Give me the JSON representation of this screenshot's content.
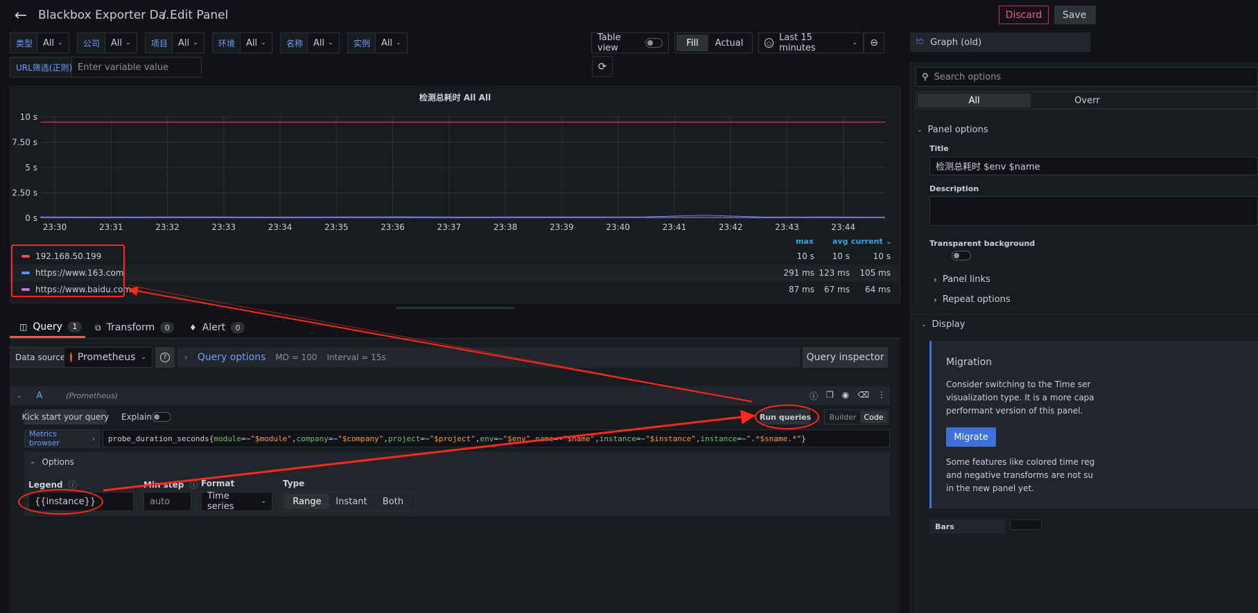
{
  "header": {
    "dashboard_title": "Blackbox Exporter Da...",
    "separator_title": "/ Edit Panel",
    "discard_label": "Discard",
    "save_label": "Save"
  },
  "variables": [
    {
      "label": "类型",
      "value": "All"
    },
    {
      "label": "公司",
      "value": "All"
    },
    {
      "label": "项目",
      "value": "All"
    },
    {
      "label": "环境",
      "value": "All"
    },
    {
      "label": "名称",
      "value": "All"
    },
    {
      "label": "实例",
      "value": "All"
    }
  ],
  "url_filter": {
    "label": "URL筛选(正则)",
    "placeholder": "Enter variable value"
  },
  "view_controls": {
    "table_view_label": "Table view",
    "fill_label": "Fill",
    "actual_label": "Actual",
    "time_range_label": "Last 15 minutes"
  },
  "chart_data": {
    "type": "line",
    "title": "检测总耗时 All All",
    "ylim": [
      0,
      10
    ],
    "y_ticks": [
      "0 s",
      "2.50 s",
      "5 s",
      "7.50 s",
      "10 s"
    ],
    "x": [
      "23:30",
      "23:31",
      "23:32",
      "23:33",
      "23:34",
      "23:35",
      "23:36",
      "23:37",
      "23:38",
      "23:39",
      "23:40",
      "23:41",
      "23:42",
      "23:43",
      "23:44"
    ],
    "series": [
      {
        "name": "192.168.50.199",
        "color": "#f2495c",
        "values": [
          10,
          10,
          10,
          10,
          10,
          10,
          10,
          10,
          10,
          10,
          10,
          10,
          10,
          10,
          10
        ],
        "max": "10 s",
        "avg": "10 s",
        "current": "10 s"
      },
      {
        "name": "https://www.163.com",
        "color": "#5794f2",
        "values": [
          0.12,
          0.11,
          0.12,
          0.12,
          0.11,
          0.12,
          0.13,
          0.11,
          0.12,
          0.12,
          0.12,
          0.29,
          0.11,
          0.12,
          0.105
        ],
        "max": "291 ms",
        "avg": "123 ms",
        "current": "105 ms"
      },
      {
        "name": "https://www.baidu.com",
        "color": "#b877d9",
        "values": [
          0.07,
          0.06,
          0.07,
          0.07,
          0.06,
          0.07,
          0.07,
          0.06,
          0.07,
          0.07,
          0.08,
          0.087,
          0.06,
          0.07,
          0.064
        ],
        "max": "87 ms",
        "avg": "67 ms",
        "current": "64 ms"
      }
    ],
    "legend_headers": {
      "max": "max",
      "avg": "avg",
      "current": "current"
    }
  },
  "tabs": [
    {
      "label": "Query",
      "count": "1"
    },
    {
      "label": "Transform",
      "count": "0"
    },
    {
      "label": "Alert",
      "count": "0"
    }
  ],
  "query_bar": {
    "data_source_label": "Data source",
    "datasource": "Prometheus",
    "query_options_label": "Query options",
    "md_info": "MD = 100",
    "interval_info": "Interval = 15s",
    "inspector_label": "Query inspector"
  },
  "query_row": {
    "ref_id": "A",
    "ds_name": "(Prometheus)",
    "kick_start": "Kick start your query",
    "explain_label": "Explain",
    "run_queries": "Run queries",
    "builder_label": "Builder",
    "code_label": "Code",
    "metrics_browser": "Metrics browser",
    "options_label": "Options",
    "legend_label": "Legend",
    "legend_value": "{{instance}}",
    "min_step_label": "Min step",
    "min_step_placeholder": "auto",
    "format_label": "Format",
    "format_value": "Time series",
    "type_label": "Type",
    "type_range": "Range",
    "type_instant": "Instant",
    "type_both": "Both"
  },
  "query_expr": [
    {
      "t": "probe_duration_seconds{",
      "c": "#ccccdc"
    },
    {
      "t": "module",
      "c": "#73bf69"
    },
    {
      "t": "=~",
      "c": "#ccccdc"
    },
    {
      "t": "\"$module\"",
      "c": "#ff9830"
    },
    {
      "t": ",",
      "c": "#ccccdc"
    },
    {
      "t": "company",
      "c": "#73bf69"
    },
    {
      "t": "=~",
      "c": "#ccccdc"
    },
    {
      "t": "\"$company\"",
      "c": "#ff9830"
    },
    {
      "t": ",",
      "c": "#ccccdc"
    },
    {
      "t": "project",
      "c": "#73bf69"
    },
    {
      "t": "=~",
      "c": "#ccccdc"
    },
    {
      "t": "\"$project\"",
      "c": "#ff9830"
    },
    {
      "t": ",",
      "c": "#ccccdc"
    },
    {
      "t": "env",
      "c": "#73bf69"
    },
    {
      "t": "=~",
      "c": "#ccccdc"
    },
    {
      "t": "\"$env\"",
      "c": "#ff9830"
    },
    {
      "t": ",",
      "c": "#ccccdc"
    },
    {
      "t": "name",
      "c": "#73bf69"
    },
    {
      "t": "=~",
      "c": "#ccccdc"
    },
    {
      "t": "\"$name\"",
      "c": "#ff9830"
    },
    {
      "t": ",",
      "c": "#ccccdc"
    },
    {
      "t": "instance",
      "c": "#73bf69"
    },
    {
      "t": "=~",
      "c": "#ccccdc"
    },
    {
      "t": "\"$instance\"",
      "c": "#ff9830"
    },
    {
      "t": ",",
      "c": "#ccccdc"
    },
    {
      "t": "instance",
      "c": "#73bf69"
    },
    {
      "t": "=~",
      "c": "#ccccdc"
    },
    {
      "t": "\".*$sname.*\"",
      "c": "#ff9830"
    },
    {
      "t": "}",
      "c": "#ccccdc"
    }
  ],
  "right_panel": {
    "viz_name": "Graph (old)",
    "search_placeholder": "Search options",
    "tab_all": "All",
    "tab_overrides": "Overr",
    "panel_options_label": "Panel options",
    "title_label": "Title",
    "title_value": "检测总耗时 $env $name",
    "description_label": "Description",
    "transparent_label": "Transparent background",
    "panel_links_label": "Panel links",
    "repeat_options_label": "Repeat options",
    "display_label": "Display",
    "migration_title": "Migration",
    "migration_text_1": "Consider switching to the Time ser",
    "migration_text_2": "visualization type. It is a more capa",
    "migration_text_3": "performant version of this panel.",
    "migrate_label": "Migrate",
    "migration_note_1": "Some features like colored time reg",
    "migration_note_2": "and negative transforms are not su",
    "migration_note_3": "in the new panel yet.",
    "bars_label": "Bars"
  }
}
